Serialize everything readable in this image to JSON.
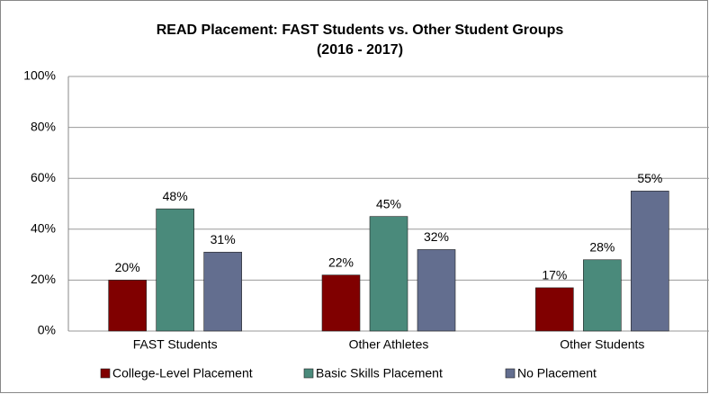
{
  "chart_data": {
    "type": "bar",
    "title": [
      "READ Placement: FAST Students vs. Other Student Groups",
      "(2016 - 2017)"
    ],
    "categories": [
      "FAST Students",
      "Other Athletes",
      "Other Students"
    ],
    "series": [
      {
        "name": "College-Level Placement",
        "color": "#800000",
        "values": [
          20,
          22,
          17
        ],
        "value_labels": [
          "20%",
          "22%",
          "17%"
        ]
      },
      {
        "name": "Basic Skills Placement",
        "color": "#4a8a7b",
        "values": [
          48,
          45,
          28
        ],
        "value_labels": [
          "48%",
          "45%",
          "28%"
        ]
      },
      {
        "name": "No Placement",
        "color": "#636e8f",
        "values": [
          31,
          32,
          55
        ],
        "value_labels": [
          "31%",
          "32%",
          "55%"
        ]
      }
    ],
    "ylim": [
      0,
      100
    ],
    "yticks": [
      {
        "value": 0,
        "label": "0%"
      },
      {
        "value": 20,
        "label": "20%"
      },
      {
        "value": 40,
        "label": "40%"
      },
      {
        "value": 60,
        "label": "60%"
      },
      {
        "value": 80,
        "label": "80%"
      },
      {
        "value": 100,
        "label": "100%"
      }
    ],
    "grid": true,
    "legend": "bottom"
  }
}
